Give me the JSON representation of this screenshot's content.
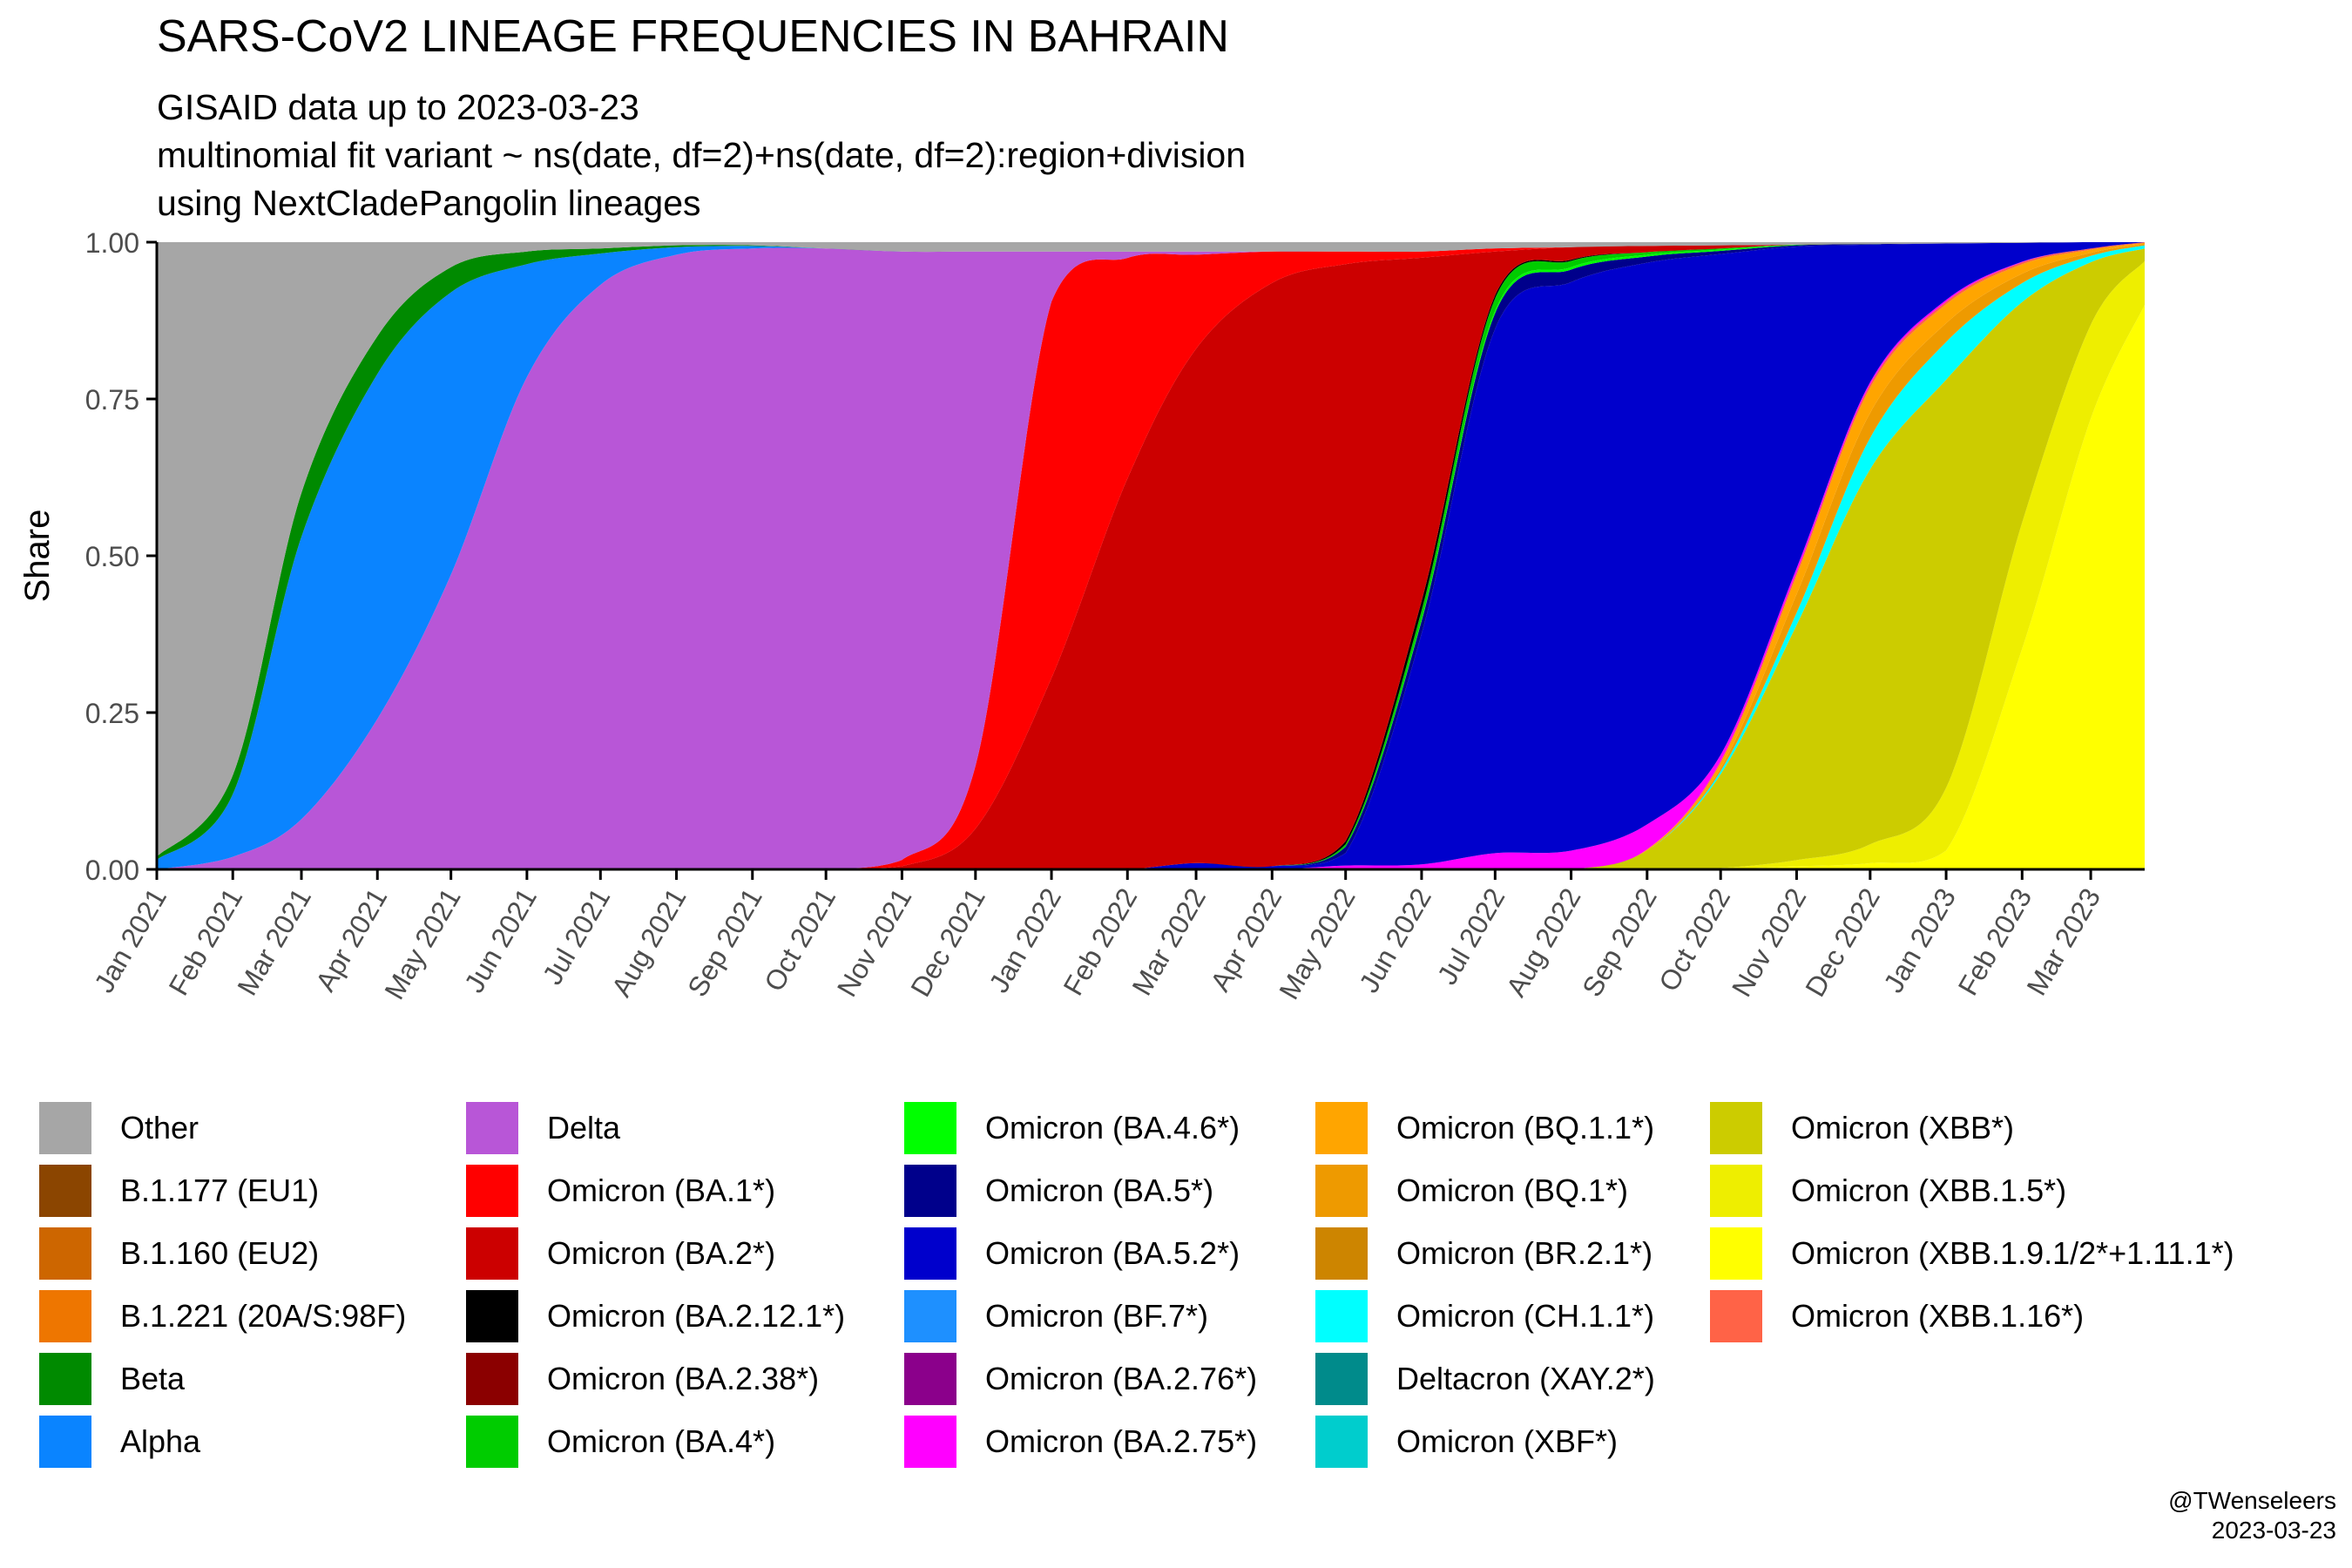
{
  "title": "SARS-CoV2 LINEAGE FREQUENCIES IN BAHRAIN",
  "subtitle_lines": [
    "GISAID data up to 2023-03-23",
    "multinomial fit variant ~ ns(date, df=2)+ns(date, df=2):region+division",
    "using NextCladePangolin lineages"
  ],
  "caption": {
    "author": "@TWenseleers",
    "date": "2023-03-23"
  },
  "chart_data": {
    "type": "area",
    "stacked": true,
    "title": "SARS-CoV2 LINEAGE FREQUENCIES IN BAHRAIN",
    "xlabel": "",
    "ylabel": "Share",
    "xlim": [
      "2021-01-01",
      "2023-03-23"
    ],
    "ylim": [
      0,
      1
    ],
    "yticks": [
      "0.00",
      "0.25",
      "0.50",
      "0.75",
      "1.00"
    ],
    "xticks": [
      "Jan 2021",
      "Feb 2021",
      "Mar 2021",
      "Apr 2021",
      "May 2021",
      "Jun 2021",
      "Jul 2021",
      "Aug 2021",
      "Sep 2021",
      "Oct 2021",
      "Nov 2021",
      "Dec 2021",
      "Jan 2022",
      "Feb 2022",
      "Mar 2022",
      "Apr 2022",
      "May 2022",
      "Jun 2022",
      "Jul 2022",
      "Aug 2022",
      "Sep 2022",
      "Oct 2022",
      "Nov 2022",
      "Dec 2022",
      "Jan 2023",
      "Feb 2023",
      "Mar 2023"
    ],
    "grid": false,
    "legend_position": "bottom",
    "stack_order_top_to_bottom": [
      "Other",
      "Beta",
      "Alpha",
      "Delta",
      "Omicron (BA.1*)",
      "Omicron (BA.2*)",
      "Omicron (BA.2.12.1*)",
      "Omicron (BA.4*)",
      "Omicron (BA.4.6*)",
      "Omicron (BA.5*)",
      "Omicron (BA.5.2*)",
      "Omicron (BA.2.75*)",
      "Omicron (XBB.1.16*)",
      "Omicron (BQ.1.1*)",
      "Omicron (BQ.1*)",
      "Omicron (CH.1.1*)",
      "Omicron (XBB*)",
      "Omicron (XBB.1.5*)",
      "Omicron (XBB.1.9.1/2*+1.11.1*)"
    ],
    "x": [
      "2021-01-01",
      "2021-02-01",
      "2021-03-01",
      "2021-04-01",
      "2021-05-01",
      "2021-06-01",
      "2021-07-01",
      "2021-08-01",
      "2021-09-01",
      "2021-10-01",
      "2021-11-01",
      "2021-12-01",
      "2022-01-01",
      "2022-02-01",
      "2022-03-01",
      "2022-04-01",
      "2022-05-01",
      "2022-06-01",
      "2022-07-01",
      "2022-08-01",
      "2022-09-01",
      "2022-10-01",
      "2022-11-01",
      "2022-12-01",
      "2023-01-01",
      "2023-02-01",
      "2023-03-01",
      "2023-03-23"
    ],
    "series": [
      {
        "name": "Other",
        "color": "#A6A6A6",
        "values": [
          0.98,
          0.85,
          0.4,
          0.15,
          0.04,
          0.015,
          0.01,
          0.005,
          0.005,
          0.01,
          0.015,
          0.015,
          0.015,
          0.015,
          0.015,
          0.015,
          0.015,
          0.015,
          0.01,
          0.008,
          0.006,
          0.005,
          0.004,
          0.003,
          0.002,
          0.001,
          0.0,
          0.0
        ]
      },
      {
        "name": "Beta",
        "color": "#008A00",
        "values": [
          0.005,
          0.03,
          0.07,
          0.06,
          0.04,
          0.02,
          0.008,
          0.003,
          0.001,
          0,
          0,
          0,
          0,
          0,
          0,
          0,
          0,
          0,
          0,
          0,
          0,
          0,
          0,
          0,
          0,
          0,
          0,
          0
        ]
      },
      {
        "name": "Alpha",
        "color": "#0A84FF",
        "values": [
          0.015,
          0.1,
          0.45,
          0.55,
          0.45,
          0.18,
          0.05,
          0.012,
          0.004,
          0,
          0,
          0,
          0,
          0,
          0,
          0,
          0,
          0,
          0,
          0,
          0,
          0,
          0,
          0,
          0,
          0,
          0,
          0
        ]
      },
      {
        "name": "Delta",
        "color": "#B856D7",
        "values": [
          0,
          0.02,
          0.08,
          0.24,
          0.47,
          0.785,
          0.932,
          0.98,
          0.99,
          0.99,
          0.97,
          0.82,
          0.08,
          0.01,
          0.005,
          0,
          0,
          0,
          0,
          0,
          0,
          0,
          0,
          0,
          0,
          0,
          0,
          0
        ]
      },
      {
        "name": "Omicron (BA.1*)",
        "color": "#FF0000",
        "values": [
          0,
          0,
          0,
          0,
          0,
          0,
          0,
          0,
          0,
          0,
          0.01,
          0.1,
          0.6,
          0.35,
          0.15,
          0.05,
          0.02,
          0.01,
          0.005,
          0,
          0,
          0,
          0,
          0,
          0,
          0,
          0,
          0
        ]
      },
      {
        "name": "Omicron (BA.2*)",
        "color": "#CC0000",
        "values": [
          0,
          0,
          0,
          0,
          0,
          0,
          0,
          0,
          0,
          0,
          0.005,
          0.065,
          0.305,
          0.62,
          0.82,
          0.93,
          0.92,
          0.55,
          0.07,
          0.02,
          0.01,
          0.005,
          0,
          0,
          0,
          0,
          0,
          0
        ]
      },
      {
        "name": "Omicron (BA.2.12.1*)",
        "color": "#000000",
        "values": [
          0,
          0,
          0,
          0,
          0,
          0,
          0,
          0,
          0,
          0,
          0,
          0,
          0,
          0,
          0,
          0,
          0.005,
          0.015,
          0.005,
          0.002,
          0,
          0,
          0,
          0,
          0,
          0,
          0,
          0
        ]
      },
      {
        "name": "Omicron (BA.4*)",
        "color": "#00CC00",
        "values": [
          0,
          0,
          0,
          0,
          0,
          0,
          0,
          0,
          0,
          0,
          0,
          0,
          0,
          0,
          0,
          0,
          0.004,
          0.015,
          0.02,
          0.01,
          0.004,
          0.002,
          0,
          0,
          0,
          0,
          0,
          0
        ]
      },
      {
        "name": "Omicron (BA.4.6*)",
        "color": "#00FF00",
        "values": [
          0,
          0,
          0,
          0,
          0,
          0,
          0,
          0,
          0,
          0,
          0,
          0,
          0,
          0,
          0,
          0,
          0,
          0.002,
          0.004,
          0.004,
          0.003,
          0.002,
          0.001,
          0,
          0,
          0,
          0,
          0
        ]
      },
      {
        "name": "Omicron (BA.5*)",
        "color": "#00008B",
        "values": [
          0,
          0,
          0,
          0,
          0,
          0,
          0,
          0,
          0,
          0,
          0,
          0,
          0,
          0,
          0,
          0,
          0.01,
          0.02,
          0.025,
          0.02,
          0.01,
          0.005,
          0.002,
          0.001,
          0,
          0,
          0,
          0
        ]
      },
      {
        "name": "Omicron (BA.5.2*)",
        "color": "#0000CC",
        "values": [
          0,
          0,
          0,
          0,
          0,
          0,
          0,
          0,
          0,
          0,
          0,
          0,
          0,
          0,
          0.01,
          0.005,
          0.02,
          0.37,
          0.84,
          0.91,
          0.9,
          0.8,
          0.52,
          0.22,
          0.09,
          0.03,
          0.01,
          0
        ]
      },
      {
        "name": "Omicron (BA.2.75*)",
        "color": "#FF00FF",
        "values": [
          0,
          0,
          0,
          0,
          0,
          0,
          0,
          0,
          0,
          0,
          0,
          0,
          0,
          0,
          0,
          0,
          0.006,
          0.008,
          0.026,
          0.03,
          0.04,
          0.01,
          0.007,
          0.004,
          0.003,
          0.001,
          0,
          0
        ]
      },
      {
        "name": "Omicron (XBB.1.16*)",
        "color": "#FF6347",
        "values": [
          0,
          0,
          0,
          0,
          0,
          0,
          0,
          0,
          0,
          0,
          0,
          0,
          0,
          0,
          0,
          0,
          0,
          0,
          0,
          0,
          0,
          0.003,
          0.005,
          0.005,
          0.004,
          0.003,
          0.002,
          0.001
        ]
      },
      {
        "name": "Omicron (BQ.1.1*)",
        "color": "#FFA500",
        "values": [
          0,
          0,
          0,
          0,
          0,
          0,
          0,
          0,
          0,
          0,
          0,
          0,
          0,
          0,
          0,
          0,
          0,
          0,
          0,
          0,
          0.001,
          0.008,
          0.03,
          0.04,
          0.03,
          0.015,
          0.005,
          0.002
        ]
      },
      {
        "name": "Omicron (BQ.1*)",
        "color": "#EE9A00",
        "values": [
          0,
          0,
          0,
          0,
          0,
          0,
          0,
          0,
          0,
          0,
          0,
          0,
          0,
          0,
          0,
          0,
          0,
          0,
          0,
          0,
          0.001,
          0.005,
          0.03,
          0.04,
          0.03,
          0.015,
          0.005,
          0.002
        ]
      },
      {
        "name": "Omicron (CH.1.1*)",
        "color": "#00FFFF",
        "values": [
          0,
          0,
          0,
          0,
          0,
          0,
          0,
          0,
          0,
          0,
          0,
          0,
          0,
          0,
          0,
          0,
          0,
          0,
          0,
          0,
          0,
          0.005,
          0.02,
          0.05,
          0.06,
          0.03,
          0.01,
          0.005
        ]
      },
      {
        "name": "Omicron (XBB*)",
        "color": "#CCCC00",
        "values": [
          0,
          0,
          0,
          0,
          0,
          0,
          0,
          0,
          0,
          0,
          0,
          0,
          0,
          0,
          0,
          0,
          0,
          0,
          0,
          0,
          0.03,
          0.15,
          0.38,
          0.6,
          0.65,
          0.35,
          0.1,
          0.02
        ]
      },
      {
        "name": "Omicron (XBB.1.5*)",
        "color": "#EEEE00",
        "values": [
          0,
          0,
          0,
          0,
          0,
          0,
          0,
          0,
          0,
          0,
          0,
          0,
          0,
          0,
          0,
          0,
          0,
          0,
          0,
          0,
          0,
          0.002,
          0.01,
          0.03,
          0.1,
          0.2,
          0.15,
          0.07
        ]
      },
      {
        "name": "Omicron (XBB.1.9.1/2*+1.11.1*)",
        "color": "#FFFF00",
        "values": [
          0,
          0,
          0,
          0,
          0,
          0,
          0,
          0,
          0,
          0,
          0,
          0,
          0,
          0,
          0,
          0,
          0,
          0,
          0,
          0,
          0,
          0,
          0.005,
          0.01,
          0.03,
          0.35,
          0.72,
          0.9
        ]
      }
    ]
  },
  "legend": {
    "columns": [
      [
        {
          "label": "Other",
          "color": "#A6A6A6"
        },
        {
          "label": "B.1.177 (EU1)",
          "color": "#8B4500"
        },
        {
          "label": "B.1.160 (EU2)",
          "color": "#CD6600"
        },
        {
          "label": "B.1.221 (20A/S:98F)",
          "color": "#EE7600"
        },
        {
          "label": "Beta",
          "color": "#008A00"
        },
        {
          "label": "Alpha",
          "color": "#0A84FF"
        }
      ],
      [
        {
          "label": "Delta",
          "color": "#B856D7"
        },
        {
          "label": "Omicron (BA.1*)",
          "color": "#FF0000"
        },
        {
          "label": "Omicron (BA.2*)",
          "color": "#CC0000"
        },
        {
          "label": "Omicron (BA.2.12.1*)",
          "color": "#000000"
        },
        {
          "label": "Omicron (BA.2.38*)",
          "color": "#8B0000"
        },
        {
          "label": "Omicron (BA.4*)",
          "color": "#00CC00"
        }
      ],
      [
        {
          "label": "Omicron (BA.4.6*)",
          "color": "#00FF00"
        },
        {
          "label": "Omicron (BA.5*)",
          "color": "#00008B"
        },
        {
          "label": "Omicron (BA.5.2*)",
          "color": "#0000CC"
        },
        {
          "label": "Omicron (BF.7*)",
          "color": "#1E90FF"
        },
        {
          "label": "Omicron (BA.2.76*)",
          "color": "#8B008B"
        },
        {
          "label": "Omicron (BA.2.75*)",
          "color": "#FF00FF"
        }
      ],
      [
        {
          "label": "Omicron (BQ.1.1*)",
          "color": "#FFA500"
        },
        {
          "label": "Omicron (BQ.1*)",
          "color": "#EE9A00"
        },
        {
          "label": "Omicron (BR.2.1*)",
          "color": "#CD8500"
        },
        {
          "label": "Omicron (CH.1.1*)",
          "color": "#00FFFF"
        },
        {
          "label": "Deltacron (XAY.2*)",
          "color": "#008B8B"
        },
        {
          "label": "Omicron (XBF*)",
          "color": "#00CDCD"
        }
      ],
      [
        {
          "label": "Omicron (XBB*)",
          "color": "#CCCC00"
        },
        {
          "label": "Omicron (XBB.1.5*)",
          "color": "#EEEE00"
        },
        {
          "label": "Omicron (XBB.1.9.1/2*+1.11.1*)",
          "color": "#FFFF00"
        },
        {
          "label": "Omicron (XBB.1.16*)",
          "color": "#FF6347"
        }
      ]
    ]
  }
}
